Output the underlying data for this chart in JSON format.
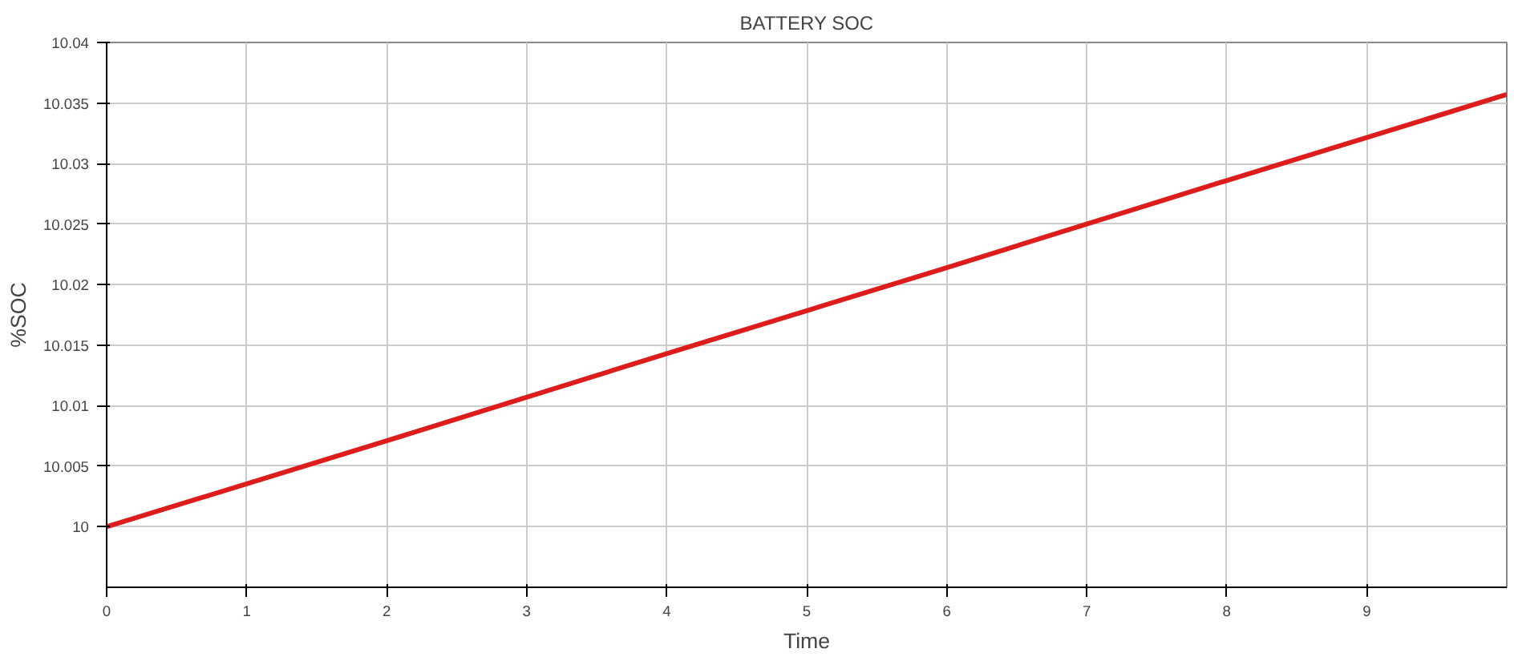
{
  "chart_data": {
    "type": "line",
    "title": "BATTERY SOC",
    "xlabel": "Time",
    "ylabel": "%SOC",
    "x": [
      0,
      2,
      4,
      6,
      8,
      10
    ],
    "series": [
      {
        "color": "#dd1c1c",
        "values": [
          10,
          10.0071,
          10.0143,
          10.0214,
          10.0286,
          10.0357
        ]
      }
    ],
    "xlim": [
      0,
      10
    ],
    "ylim": [
      9.995,
      10.04
    ],
    "xticks": [
      0,
      1,
      2,
      3,
      4,
      5,
      6,
      7,
      8,
      9
    ],
    "yticks": [
      10,
      10.005,
      10.01,
      10.015,
      10.02,
      10.025,
      10.03,
      10.035,
      10.04
    ],
    "grid": true,
    "marker": "none",
    "line_style": "solid"
  }
}
